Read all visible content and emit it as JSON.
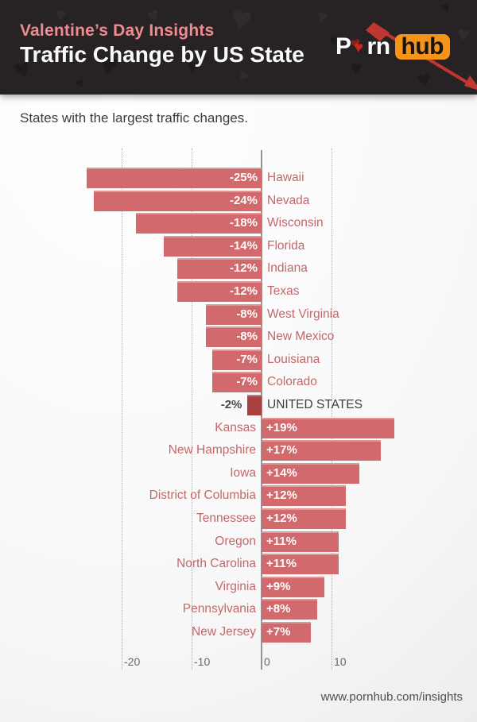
{
  "header": {
    "eyebrow": "Valentine’s Day Insights",
    "title": "Traffic Change by US State",
    "logo": {
      "word_start": "P",
      "word_end": "rn",
      "badge": "hub",
      "badge_color": "#f79417",
      "heart_color": "#c6281e"
    },
    "pattern_glyph": "♥"
  },
  "main": {
    "subtitle": "States with the largest traffic changes."
  },
  "chart_data": {
    "type": "bar",
    "orientation": "horizontal",
    "title": "Traffic Change by US State",
    "xlabel": "",
    "ylabel": "",
    "value_unit": "percent",
    "xticks": [
      "-20",
      "-10",
      "0",
      "10"
    ],
    "xtick_values": [
      -20,
      -10,
      0,
      10
    ],
    "xlim": [
      -37,
      31
    ],
    "grid": "vertical dotted lines at -20, -10, 10; solid line at 0",
    "legend": "none",
    "bar_color": "#d1696d",
    "highlight_color": "#a84140",
    "state_label_color": "#c4676b",
    "highlight_label_color": "#413d3f",
    "rows": [
      {
        "state": "Hawaii",
        "value": -25,
        "label": "-25%"
      },
      {
        "state": "Nevada",
        "value": -24,
        "label": "-24%"
      },
      {
        "state": "Wisconsin",
        "value": -18,
        "label": "-18%"
      },
      {
        "state": "Florida",
        "value": -14,
        "label": "-14%"
      },
      {
        "state": "Indiana",
        "value": -12,
        "label": "-12%"
      },
      {
        "state": "Texas",
        "value": -12,
        "label": "-12%"
      },
      {
        "state": "West Virginia",
        "value": -8,
        "label": "-8%"
      },
      {
        "state": "New Mexico",
        "value": -8,
        "label": "-8%"
      },
      {
        "state": "Louisiana",
        "value": -7,
        "label": "-7%"
      },
      {
        "state": "Colorado",
        "value": -7,
        "label": "-7%"
      },
      {
        "state": "UNITED STATES",
        "value": -2,
        "label": "-2%",
        "highlight": true
      },
      {
        "state": "Kansas",
        "value": 19,
        "label": "+19%"
      },
      {
        "state": "New Hampshire",
        "value": 17,
        "label": "+17%"
      },
      {
        "state": "Iowa",
        "value": 14,
        "label": "+14%"
      },
      {
        "state": "District of Columbia",
        "value": 12,
        "label": "+12%"
      },
      {
        "state": "Tennessee",
        "value": 12,
        "label": "+12%"
      },
      {
        "state": "Oregon",
        "value": 11,
        "label": "+11%"
      },
      {
        "state": "North Carolina",
        "value": 11,
        "label": "+11%"
      },
      {
        "state": "Virginia",
        "value": 9,
        "label": "+9%"
      },
      {
        "state": "Pennsylvania",
        "value": 8,
        "label": "+8%"
      },
      {
        "state": "New Jersey",
        "value": 7,
        "label": "+7%"
      }
    ]
  },
  "footer": {
    "url": "www.pornhub.com/insights"
  }
}
